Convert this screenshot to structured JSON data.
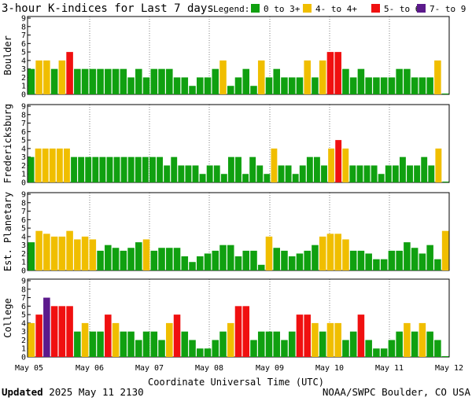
{
  "header": {
    "title": "3-hour K-indices for Last 7 days",
    "legend_label": "Legend:"
  },
  "legend": [
    {
      "label": "0 to 3+",
      "color": "#10A010"
    },
    {
      "label": "4- to 4+",
      "color": "#F0BE00"
    },
    {
      "label": "5- to 6+",
      "color": "#F01010"
    },
    {
      "label": "7- to 9",
      "color": "#5C1A8C"
    }
  ],
  "xaxis": {
    "label": "Coordinate Universal Time (UTC)",
    "ticks": [
      "May 05",
      "May 06",
      "May 07",
      "May 08",
      "May 09",
      "May 10",
      "May 11",
      "May 12"
    ]
  },
  "footer": {
    "updated_label": "Updated",
    "updated_value": "2025 May 11 2130",
    "source": "NOAA/SWPC Boulder, CO USA"
  },
  "chart_data": [
    {
      "type": "bar",
      "title": "Boulder",
      "ylim": [
        0,
        9
      ],
      "yticks": [
        "0",
        "1",
        "2",
        "3",
        "4",
        "5",
        "6",
        "7",
        "8",
        "9"
      ],
      "values": [
        3,
        4,
        4,
        3,
        4,
        5,
        3,
        3,
        3,
        3,
        3,
        3,
        3,
        2,
        3,
        2,
        3,
        3,
        3,
        2,
        2,
        1,
        2,
        2,
        3,
        4,
        1,
        2,
        3,
        1,
        4,
        2,
        3,
        2,
        2,
        2,
        4,
        2,
        4,
        5,
        5,
        3,
        2,
        3,
        2,
        2,
        2,
        2,
        3,
        3,
        2,
        2,
        2,
        4,
        0.1
      ]
    },
    {
      "type": "bar",
      "title": "Fredericksburg",
      "ylim": [
        0,
        9
      ],
      "yticks": [
        "0",
        "1",
        "2",
        "3",
        "4",
        "5",
        "6",
        "7",
        "8",
        "9"
      ],
      "values": [
        3,
        4,
        4,
        4,
        4,
        4,
        3,
        3,
        3,
        3,
        3,
        3,
        3,
        3,
        3,
        3,
        3,
        3,
        3,
        2,
        3,
        2,
        2,
        2,
        1,
        2,
        2,
        1,
        3,
        3,
        1,
        3,
        2,
        1,
        4,
        2,
        2,
        1,
        2,
        3,
        3,
        2,
        4,
        5,
        4,
        2,
        2,
        2,
        2,
        1,
        2,
        2,
        3,
        2,
        2,
        3,
        2,
        4,
        0.1
      ]
    },
    {
      "type": "bar",
      "title": "Est. Planetary",
      "ylim": [
        0,
        9
      ],
      "yticks": [
        "0",
        "1",
        "2",
        "3",
        "4",
        "5",
        "6",
        "7",
        "8",
        "9"
      ],
      "values": [
        3.33,
        4.67,
        4.33,
        4,
        4,
        4.67,
        3.67,
        4,
        3.67,
        2.33,
        3,
        2.67,
        2.33,
        2.67,
        3.33,
        3.67,
        2.33,
        2.67,
        2.67,
        2.67,
        1.67,
        1,
        1.67,
        2,
        2.33,
        3,
        3,
        1.67,
        2.33,
        2.33,
        0.67,
        4,
        2.67,
        2.33,
        1.67,
        2,
        2.33,
        3,
        4,
        4.33,
        4.33,
        3.67,
        2.33,
        2.33,
        2,
        1.33,
        1.33,
        2.33,
        2.33,
        3.33,
        2.67,
        2,
        3,
        1.33,
        4.67
      ]
    },
    {
      "type": "bar",
      "title": "College",
      "ylim": [
        0,
        9
      ],
      "yticks": [
        "0",
        "1",
        "2",
        "3",
        "4",
        "5",
        "6",
        "7",
        "8",
        "9"
      ],
      "values": [
        4,
        5,
        7,
        6,
        6,
        6,
        3,
        4,
        3,
        3,
        5,
        4,
        3,
        3,
        2,
        3,
        3,
        2,
        4,
        5,
        3,
        2,
        1,
        1,
        2,
        3,
        4,
        6,
        6,
        2,
        3,
        3,
        3,
        2,
        3,
        5,
        5,
        4,
        3,
        4,
        4,
        2,
        3,
        5,
        2,
        1,
        1,
        2,
        3,
        4,
        3,
        4,
        3,
        2,
        0.1
      ]
    }
  ]
}
